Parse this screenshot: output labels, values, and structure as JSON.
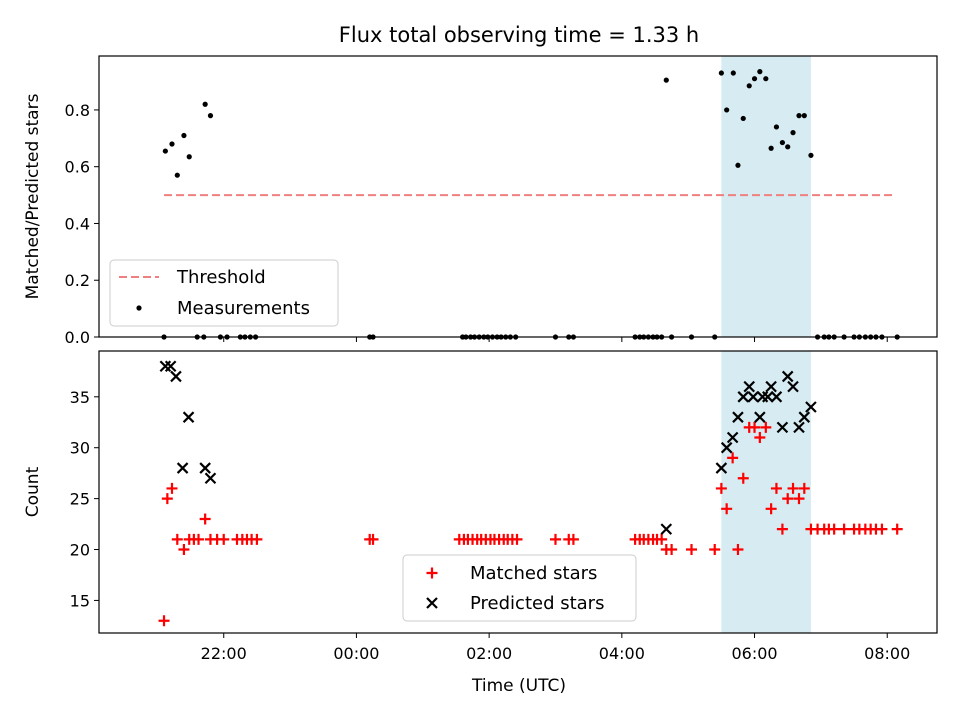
{
  "chart_data": {
    "title": "Flux total observing time = 1.33 h",
    "x_axis": {
      "label": "Time (UTC)",
      "unit": "hours relative to 00:00 UTC",
      "range": [
        -3.88,
        8.75
      ],
      "ticks": [
        {
          "v": -2,
          "label": "22:00"
        },
        {
          "v": 0,
          "label": "00:00"
        },
        {
          "v": 2,
          "label": "02:00"
        },
        {
          "v": 4,
          "label": "04:00"
        },
        {
          "v": 6,
          "label": "06:00"
        },
        {
          "v": 8,
          "label": "08:00"
        }
      ]
    },
    "highlight_span": {
      "x0": 5.5,
      "x1": 6.85,
      "color": "#add8e6",
      "opacity": 0.5
    },
    "panels": [
      {
        "id": "ratio",
        "type": "scatter",
        "ylabel": "Matched/Predicted stars",
        "ylim": [
          0,
          0.99
        ],
        "yticks": [
          "0.0",
          "0.2",
          "0.4",
          "0.6",
          "0.8"
        ],
        "ytick_values": [
          0,
          0.2,
          0.4,
          0.6,
          0.8
        ],
        "legend_position": "lower-left",
        "threshold": {
          "name": "Threshold",
          "y": 0.5,
          "x0": -2.9,
          "x1": 8.1,
          "color": "#f08080",
          "style": "dashed"
        },
        "measurements": {
          "name": "Measurements",
          "color": "#000000",
          "points": [
            [
              -2.9,
              0
            ],
            [
              -2.88,
              0.655
            ],
            [
              -2.78,
              0.68
            ],
            [
              -2.7,
              0.57
            ],
            [
              -2.6,
              0.71
            ],
            [
              -2.52,
              0.635
            ],
            [
              -2.4,
              0
            ],
            [
              -2.3,
              0
            ],
            [
              -2.28,
              0.82
            ],
            [
              -2.2,
              0.78
            ],
            [
              -2.05,
              0
            ],
            [
              -1.95,
              0
            ],
            [
              -1.75,
              0
            ],
            [
              -1.68,
              0
            ],
            [
              -1.6,
              0
            ],
            [
              -1.52,
              0
            ],
            [
              0.2,
              0
            ],
            [
              0.25,
              0
            ],
            [
              1.6,
              0
            ],
            [
              1.65,
              0
            ],
            [
              1.72,
              0
            ],
            [
              1.78,
              0
            ],
            [
              1.85,
              0
            ],
            [
              1.92,
              0
            ],
            [
              1.98,
              0
            ],
            [
              2.05,
              0
            ],
            [
              2.12,
              0
            ],
            [
              2.18,
              0
            ],
            [
              2.25,
              0
            ],
            [
              2.32,
              0
            ],
            [
              2.4,
              0
            ],
            [
              3.0,
              0
            ],
            [
              3.2,
              0
            ],
            [
              3.27,
              0
            ],
            [
              4.2,
              0
            ],
            [
              4.27,
              0
            ],
            [
              4.33,
              0
            ],
            [
              4.4,
              0
            ],
            [
              4.47,
              0
            ],
            [
              4.53,
              0
            ],
            [
              4.6,
              0
            ],
            [
              4.67,
              0.905
            ],
            [
              4.75,
              0
            ],
            [
              5.05,
              0
            ],
            [
              5.4,
              0
            ],
            [
              5.5,
              0.93
            ],
            [
              5.58,
              0.8
            ],
            [
              5.68,
              0.93
            ],
            [
              5.75,
              0.605
            ],
            [
              5.83,
              0.77
            ],
            [
              5.92,
              0.885
            ],
            [
              6.0,
              0.91
            ],
            [
              6.08,
              0.935
            ],
            [
              6.17,
              0.91
            ],
            [
              6.25,
              0.665
            ],
            [
              6.33,
              0.74
            ],
            [
              6.42,
              0.685
            ],
            [
              6.5,
              0.67
            ],
            [
              6.58,
              0.72
            ],
            [
              6.67,
              0.78
            ],
            [
              6.75,
              0.78
            ],
            [
              6.85,
              0.64
            ],
            [
              6.95,
              0
            ],
            [
              7.05,
              0
            ],
            [
              7.12,
              0
            ],
            [
              7.2,
              0
            ],
            [
              7.35,
              0
            ],
            [
              7.5,
              0
            ],
            [
              7.58,
              0
            ],
            [
              7.67,
              0
            ],
            [
              7.75,
              0
            ],
            [
              7.83,
              0
            ],
            [
              7.92,
              0
            ],
            [
              8.15,
              0
            ]
          ]
        }
      },
      {
        "id": "counts",
        "type": "scatter",
        "ylabel": "Count",
        "ylim": [
          11.8,
          39.5
        ],
        "yticks": [
          "15",
          "20",
          "25",
          "30",
          "35"
        ],
        "ytick_values": [
          15,
          20,
          25,
          30,
          35
        ],
        "legend_position": "lower-center",
        "series": [
          {
            "name": "Matched stars",
            "marker": "+",
            "color": "#ff0000",
            "points": [
              [
                -2.9,
                13
              ],
              [
                -2.85,
                25
              ],
              [
                -2.78,
                26
              ],
              [
                -2.7,
                21
              ],
              [
                -2.6,
                20
              ],
              [
                -2.52,
                21
              ],
              [
                -2.45,
                21
              ],
              [
                -2.38,
                21
              ],
              [
                -2.28,
                23
              ],
              [
                -2.2,
                21
              ],
              [
                -2.1,
                21
              ],
              [
                -2.0,
                21
              ],
              [
                -1.8,
                21
              ],
              [
                -1.72,
                21
              ],
              [
                -1.65,
                21
              ],
              [
                -1.58,
                21
              ],
              [
                -1.5,
                21
              ],
              [
                0.2,
                21
              ],
              [
                0.25,
                21
              ],
              [
                1.55,
                21
              ],
              [
                1.62,
                21
              ],
              [
                1.68,
                21
              ],
              [
                1.75,
                21
              ],
              [
                1.82,
                21
              ],
              [
                1.88,
                21
              ],
              [
                1.95,
                21
              ],
              [
                2.02,
                21
              ],
              [
                2.08,
                21
              ],
              [
                2.15,
                21
              ],
              [
                2.22,
                21
              ],
              [
                2.28,
                21
              ],
              [
                2.35,
                21
              ],
              [
                2.42,
                21
              ],
              [
                3.0,
                21
              ],
              [
                3.2,
                21
              ],
              [
                3.27,
                21
              ],
              [
                4.2,
                21
              ],
              [
                4.27,
                21
              ],
              [
                4.33,
                21
              ],
              [
                4.4,
                21
              ],
              [
                4.47,
                21
              ],
              [
                4.53,
                21
              ],
              [
                4.6,
                21
              ],
              [
                4.67,
                20
              ],
              [
                4.75,
                20
              ],
              [
                5.05,
                20
              ],
              [
                5.4,
                20
              ],
              [
                5.5,
                26
              ],
              [
                5.58,
                24
              ],
              [
                5.67,
                29
              ],
              [
                5.75,
                20
              ],
              [
                5.83,
                27
              ],
              [
                5.92,
                32
              ],
              [
                6.0,
                32
              ],
              [
                6.08,
                31
              ],
              [
                6.17,
                32
              ],
              [
                6.25,
                24
              ],
              [
                6.33,
                26
              ],
              [
                6.42,
                22
              ],
              [
                6.5,
                25
              ],
              [
                6.58,
                26
              ],
              [
                6.67,
                25
              ],
              [
                6.75,
                26
              ],
              [
                6.85,
                22
              ],
              [
                6.95,
                22
              ],
              [
                7.05,
                22
              ],
              [
                7.12,
                22
              ],
              [
                7.2,
                22
              ],
              [
                7.35,
                22
              ],
              [
                7.5,
                22
              ],
              [
                7.58,
                22
              ],
              [
                7.67,
                22
              ],
              [
                7.75,
                22
              ],
              [
                7.83,
                22
              ],
              [
                7.92,
                22
              ],
              [
                8.15,
                22
              ]
            ]
          },
          {
            "name": "Predicted stars",
            "marker": "x",
            "color": "#000000",
            "points": [
              [
                -2.88,
                38
              ],
              [
                -2.8,
                38
              ],
              [
                -2.72,
                37
              ],
              [
                -2.62,
                28
              ],
              [
                -2.53,
                33
              ],
              [
                -2.28,
                28
              ],
              [
                -2.2,
                27
              ],
              [
                4.67,
                22
              ],
              [
                5.5,
                28
              ],
              [
                5.58,
                30
              ],
              [
                5.67,
                31
              ],
              [
                5.75,
                33
              ],
              [
                5.83,
                35
              ],
              [
                5.92,
                36
              ],
              [
                5.98,
                35
              ],
              [
                6.08,
                33
              ],
              [
                6.12,
                35
              ],
              [
                6.2,
                35
              ],
              [
                6.25,
                36
              ],
              [
                6.33,
                35
              ],
              [
                6.42,
                32
              ],
              [
                6.5,
                37
              ],
              [
                6.58,
                36
              ],
              [
                6.67,
                32
              ],
              [
                6.75,
                33
              ],
              [
                6.85,
                34
              ]
            ]
          }
        ]
      }
    ]
  }
}
